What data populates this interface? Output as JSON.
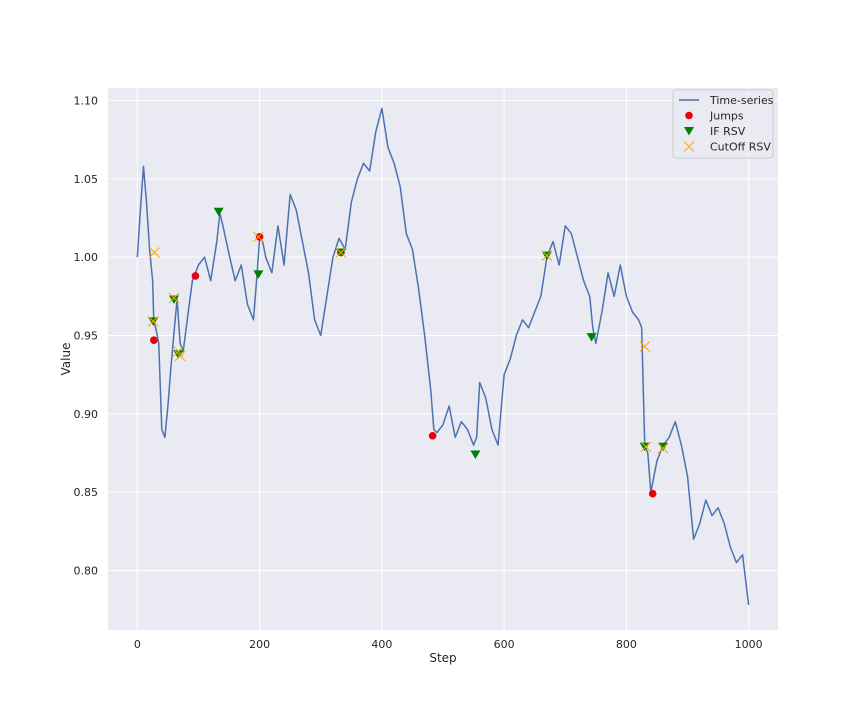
{
  "chart_data": {
    "type": "line",
    "title": "",
    "xlabel": "Step",
    "ylabel": "Value",
    "xlim": [
      -48,
      1048
    ],
    "ylim": [
      0.762,
      1.108
    ],
    "xticks": [
      0,
      200,
      400,
      600,
      800,
      1000
    ],
    "xtick_labels": [
      "0",
      "200",
      "400",
      "600",
      "800",
      "1000"
    ],
    "yticks": [
      0.8,
      0.85,
      0.9,
      0.95,
      1.0,
      1.05,
      1.1
    ],
    "ytick_labels": [
      "0.80",
      "0.85",
      "0.90",
      "0.95",
      "1.00",
      "1.05",
      "1.10"
    ],
    "grid": true,
    "legend_position": "top-right",
    "colors": {
      "background": "#eaeaf2",
      "grid": "#ffffff",
      "line": "#4c72b0",
      "jumps": "#e8000b",
      "if_rsv": "#008000",
      "cutoff_rsv": "#ffa500"
    },
    "series": [
      {
        "name": "Time-series",
        "kind": "line",
        "x": [
          0,
          5,
          10,
          15,
          20,
          25,
          27,
          30,
          35,
          40,
          45,
          50,
          55,
          60,
          65,
          70,
          75,
          80,
          85,
          90,
          95,
          100,
          110,
          120,
          130,
          135,
          140,
          150,
          160,
          170,
          180,
          190,
          195,
          200,
          205,
          210,
          220,
          230,
          240,
          250,
          260,
          270,
          280,
          290,
          300,
          310,
          320,
          330,
          340,
          350,
          360,
          370,
          380,
          390,
          400,
          410,
          420,
          430,
          440,
          450,
          460,
          470,
          480,
          485,
          490,
          500,
          510,
          520,
          530,
          540,
          550,
          555,
          560,
          570,
          580,
          590,
          600,
          610,
          620,
          630,
          640,
          650,
          660,
          670,
          680,
          690,
          700,
          710,
          720,
          730,
          740,
          745,
          750,
          760,
          770,
          780,
          790,
          800,
          810,
          820,
          825,
          830,
          835,
          840,
          850,
          860,
          870,
          880,
          890,
          900,
          910,
          920,
          930,
          940,
          950,
          960,
          970,
          980,
          990,
          1000
        ],
        "values": [
          1.0,
          1.03,
          1.058,
          1.035,
          1.005,
          0.985,
          0.958,
          0.955,
          0.945,
          0.89,
          0.885,
          0.905,
          0.93,
          0.952,
          0.973,
          0.945,
          0.94,
          0.955,
          0.97,
          0.985,
          0.99,
          0.995,
          1.0,
          0.985,
          1.01,
          1.028,
          1.02,
          1.002,
          0.985,
          0.995,
          0.97,
          0.96,
          0.985,
          1.012,
          1.01,
          1.0,
          0.99,
          1.02,
          0.995,
          1.04,
          1.03,
          1.01,
          0.99,
          0.96,
          0.95,
          0.975,
          1.0,
          1.012,
          1.005,
          1.035,
          1.05,
          1.06,
          1.055,
          1.08,
          1.095,
          1.07,
          1.06,
          1.045,
          1.015,
          1.005,
          0.98,
          0.95,
          0.915,
          0.89,
          0.888,
          0.893,
          0.905,
          0.885,
          0.895,
          0.89,
          0.88,
          0.885,
          0.92,
          0.91,
          0.89,
          0.88,
          0.925,
          0.935,
          0.95,
          0.96,
          0.955,
          0.965,
          0.975,
          1.0,
          1.01,
          0.995,
          1.02,
          1.015,
          1.0,
          0.985,
          0.975,
          0.955,
          0.945,
          0.965,
          0.99,
          0.975,
          0.995,
          0.975,
          0.965,
          0.96,
          0.955,
          0.88,
          0.875,
          0.85,
          0.87,
          0.88,
          0.885,
          0.895,
          0.88,
          0.86,
          0.82,
          0.83,
          0.845,
          0.835,
          0.84,
          0.83,
          0.815,
          0.805,
          0.81,
          0.778
        ]
      },
      {
        "name": "Jumps",
        "kind": "scatter",
        "marker": "circle",
        "x": [
          27,
          95,
          200,
          333,
          483,
          843
        ],
        "values": [
          0.947,
          0.988,
          1.013,
          1.003,
          0.886,
          0.849
        ]
      },
      {
        "name": "IF RSV",
        "kind": "scatter",
        "marker": "triangle-down",
        "x": [
          26,
          60,
          67,
          133,
          198,
          333,
          553,
          670,
          743,
          830,
          860
        ],
        "values": [
          0.959,
          0.973,
          0.938,
          1.029,
          0.989,
          1.003,
          0.874,
          1.001,
          0.949,
          0.879,
          0.879
        ]
      },
      {
        "name": "CutOff RSV",
        "kind": "scatter",
        "marker": "x",
        "x": [
          26,
          28,
          60,
          67,
          70,
          198,
          333,
          670,
          830,
          832,
          860
        ],
        "values": [
          0.959,
          1.003,
          0.974,
          0.94,
          0.937,
          1.013,
          1.003,
          1.001,
          0.943,
          0.879,
          0.878
        ]
      }
    ]
  }
}
